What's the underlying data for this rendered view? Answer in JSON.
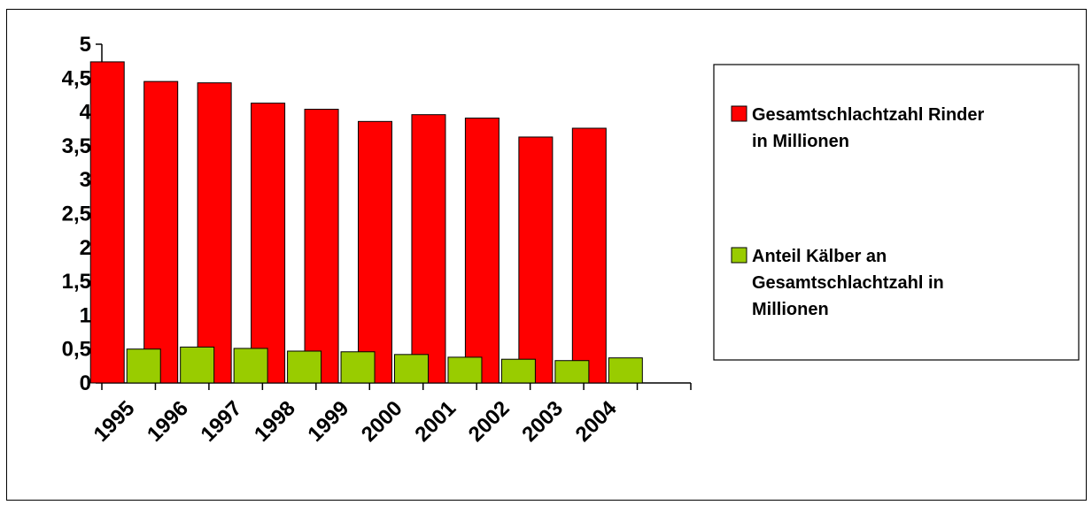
{
  "chart_data": {
    "type": "bar",
    "categories": [
      "1995",
      "1996",
      "1997",
      "1998",
      "1999",
      "2000",
      "2001",
      "2002",
      "2003",
      "2004",
      ""
    ],
    "series": [
      {
        "name": "Gesamtschlachtzahl  Rinder in Millionen",
        "name_lines": [
          "Gesamtschlachtzahl  Rinder",
          "in Millionen"
        ],
        "color": "#ff0000",
        "values": [
          4.74,
          4.45,
          4.43,
          4.13,
          4.04,
          3.86,
          3.96,
          3.91,
          3.63,
          3.76,
          null
        ]
      },
      {
        "name": "Anteil Kälber an Gesamtschlachtzahl in Millionen",
        "name_lines": [
          "Anteil Kälber an",
          "Gesamtschlachtzahl in",
          "Millionen"
        ],
        "color": "#99cc00",
        "values": [
          0.5,
          0.53,
          0.51,
          0.47,
          0.46,
          0.42,
          0.38,
          0.35,
          0.33,
          0.37,
          null
        ]
      }
    ],
    "ylim": [
      0,
      5
    ],
    "yticks": [
      "0",
      "0,5",
      "1",
      "1,5",
      "2",
      "2,5",
      "3",
      "3,5",
      "4",
      "4,5",
      "5"
    ],
    "title": "",
    "xlabel": "",
    "ylabel": "",
    "grid": false,
    "legend": "right"
  }
}
